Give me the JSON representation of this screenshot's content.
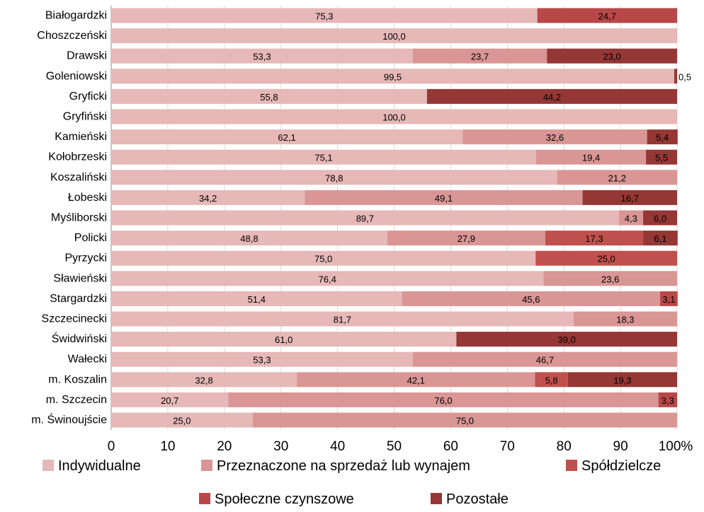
{
  "chart_data": {
    "type": "bar",
    "orientation": "horizontal",
    "stacked": "percent",
    "categories": [
      "Białogardzki",
      "Choszczeński",
      "Drawski",
      "Goleniowski",
      "Gryficki",
      "Gryfiński",
      "Kamieński",
      "Kołobrzeski",
      "Koszaliński",
      "Łobeski",
      "Myśliborski",
      "Policki",
      "Pyrzycki",
      "Sławieński",
      "Stargardzki",
      "Szczecinecki",
      "Świdwiński",
      "Wałecki",
      "m. Koszalin",
      "m. Szczecin",
      "m. Świnoujście"
    ],
    "series": [
      {
        "name": "Indywidualne",
        "color": "#e6b8b7",
        "values": [
          75.3,
          100.0,
          53.3,
          99.5,
          55.8,
          100.0,
          62.1,
          75.1,
          78.8,
          34.2,
          89.7,
          48.8,
          75.0,
          76.4,
          51.4,
          81.7,
          61.0,
          53.3,
          32.8,
          20.7,
          25.0
        ]
      },
      {
        "name": "Przeznaczone na sprzedaż lub wynajem",
        "color": "#d99694",
        "values": [
          null,
          null,
          23.7,
          null,
          null,
          null,
          32.6,
          19.4,
          21.2,
          49.1,
          4.3,
          27.9,
          null,
          23.6,
          45.6,
          18.3,
          null,
          46.7,
          42.1,
          76.0,
          75.0
        ]
      },
      {
        "name": "Spółdzielcze",
        "color": "#c0504d",
        "values": [
          null,
          null,
          null,
          null,
          null,
          null,
          null,
          null,
          null,
          null,
          null,
          17.3,
          25.0,
          null,
          null,
          null,
          null,
          null,
          5.8,
          null,
          null
        ]
      },
      {
        "name": "Społeczne czynszowe",
        "color": "#b84848",
        "values": [
          24.7,
          null,
          null,
          null,
          null,
          null,
          null,
          null,
          null,
          null,
          null,
          null,
          null,
          null,
          3.1,
          null,
          null,
          null,
          null,
          3.3,
          null
        ]
      },
      {
        "name": "Pozostałe",
        "color": "#953735",
        "values": [
          null,
          null,
          23.0,
          0.5,
          44.2,
          null,
          5.4,
          5.5,
          null,
          16.7,
          6.0,
          6.1,
          null,
          null,
          null,
          null,
          39.0,
          null,
          19.3,
          null,
          null
        ]
      }
    ],
    "x_ticks": [
      "0",
      "10",
      "20",
      "30",
      "40",
      "50",
      "60",
      "70",
      "80",
      "90",
      "100%"
    ],
    "xlim": [
      0,
      100
    ],
    "grid": true,
    "legend_position": "bottom"
  }
}
